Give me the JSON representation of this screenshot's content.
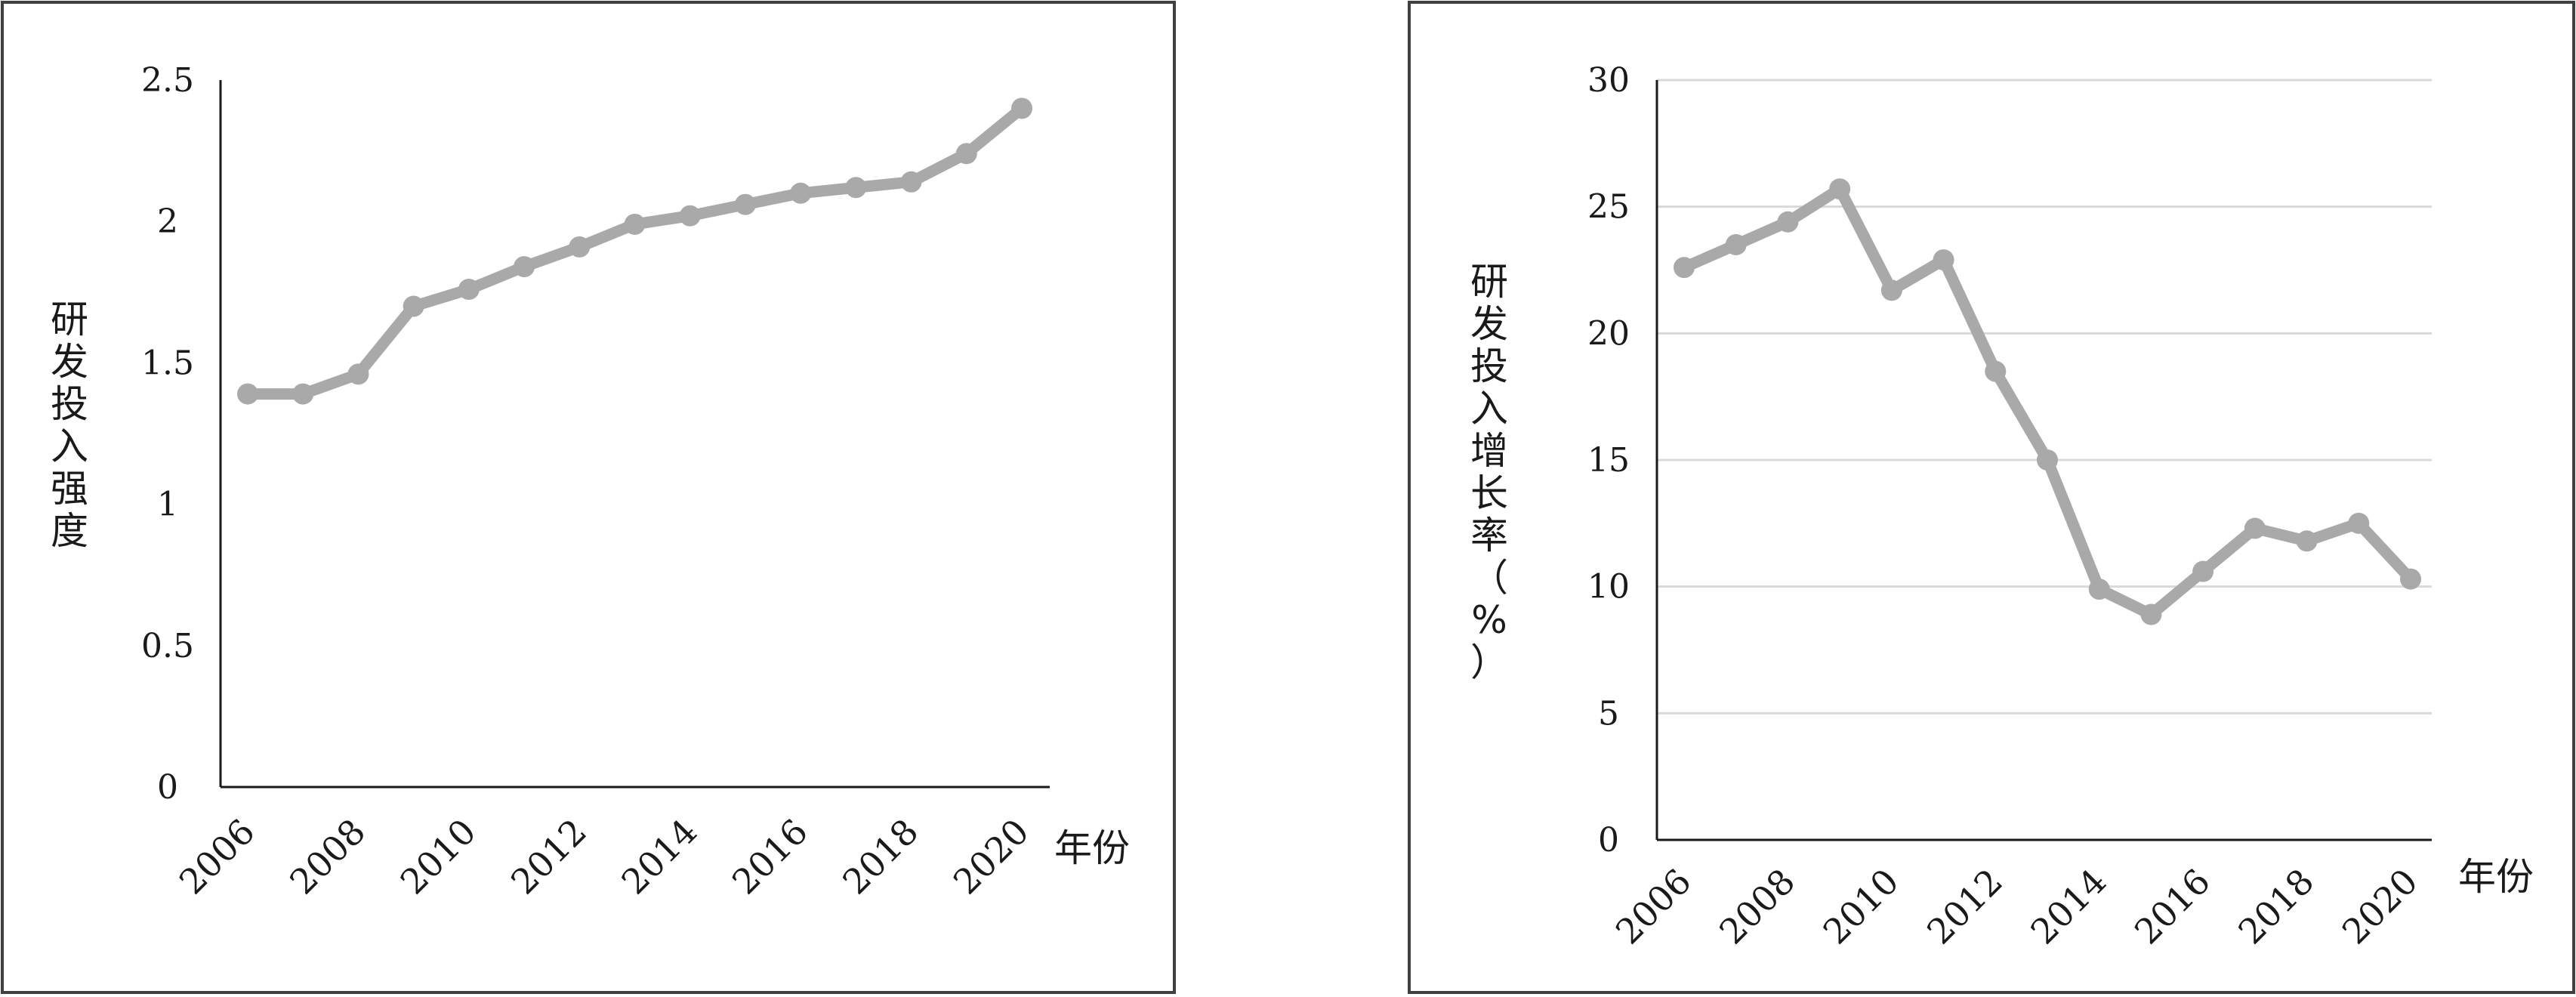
{
  "chart_data": [
    {
      "type": "line",
      "ylabel": "研发投入强度",
      "xunit": "年份",
      "ylim": [
        0,
        2.5
      ],
      "yticks": [
        "0",
        "0.5",
        "1",
        "1.5",
        "2",
        "2.5"
      ],
      "grid": false,
      "categories": [
        "2006",
        "2007",
        "2008",
        "2009",
        "2010",
        "2011",
        "2012",
        "2013",
        "2014",
        "2015",
        "2016",
        "2017",
        "2018",
        "2019",
        "2020"
      ],
      "tick_labels": [
        "2006",
        "2008",
        "2010",
        "2012",
        "2014",
        "2016",
        "2018",
        "2020"
      ],
      "series": [
        {
          "values": [
            1.39,
            1.39,
            1.46,
            1.7,
            1.76,
            1.84,
            1.91,
            1.99,
            2.02,
            2.06,
            2.1,
            2.12,
            2.14,
            2.24,
            2.4
          ]
        }
      ]
    },
    {
      "type": "line",
      "ylabel": "研发投入增长率（%）",
      "xunit": "年份",
      "ylim": [
        0,
        30
      ],
      "yticks": [
        "0",
        "5",
        "10",
        "15",
        "20",
        "25",
        "30"
      ],
      "grid": true,
      "categories": [
        "2006",
        "2007",
        "2008",
        "2009",
        "2010",
        "2011",
        "2012",
        "2013",
        "2014",
        "2015",
        "2016",
        "2017",
        "2018",
        "2019",
        "2020"
      ],
      "tick_labels": [
        "2006",
        "2008",
        "2010",
        "2012",
        "2014",
        "2016",
        "2018",
        "2020"
      ],
      "series": [
        {
          "values": [
            22.6,
            23.5,
            24.4,
            25.7,
            21.7,
            22.9,
            18.5,
            15.0,
            9.9,
            8.9,
            10.6,
            12.3,
            11.8,
            12.5,
            10.3
          ]
        }
      ]
    }
  ],
  "colors": {
    "line": "#a9a9a9",
    "frame": "#404040",
    "axis": "#1a1a1a",
    "grid": "#d9d9d9"
  }
}
